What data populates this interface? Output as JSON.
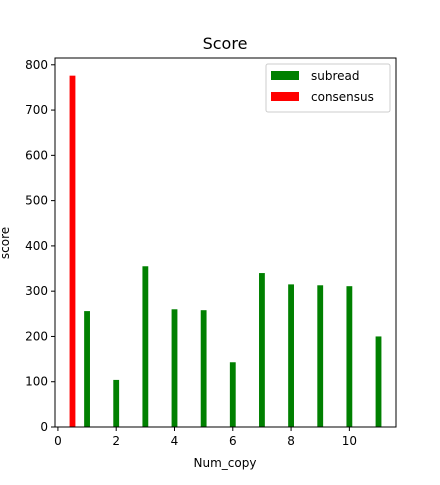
{
  "chart_data": {
    "type": "bar",
    "title": "Score",
    "xlabel": "Num_copy",
    "ylabel": "score",
    "xlim": [
      -0.1,
      11.6
    ],
    "ylim": [
      0,
      815
    ],
    "xticks": [
      0,
      2,
      4,
      6,
      8,
      10
    ],
    "yticks": [
      0,
      100,
      200,
      300,
      400,
      500,
      600,
      700,
      800
    ],
    "grid": false,
    "legend_position": "top-right",
    "bar_width": 0.2,
    "series": [
      {
        "name": "subread",
        "color": "#008000",
        "x": [
          1,
          2,
          3,
          4,
          5,
          6,
          7,
          8,
          9,
          10,
          11
        ],
        "values": [
          256,
          104,
          355,
          260,
          258,
          143,
          340,
          315,
          313,
          311,
          200
        ]
      },
      {
        "name": "consensus",
        "color": "#ff0000",
        "x": [
          0.5
        ],
        "values": [
          776
        ]
      }
    ]
  }
}
